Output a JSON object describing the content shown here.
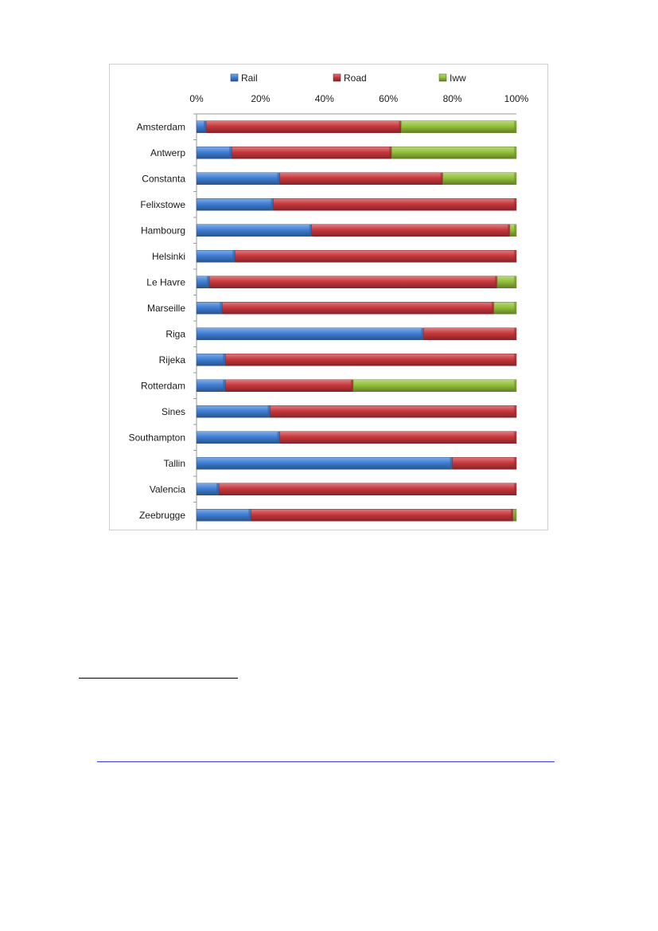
{
  "chart_data": {
    "type": "bar",
    "orientation": "horizontal",
    "stacked": true,
    "percent_stacked": true,
    "title": "",
    "xlabel": "",
    "ylabel": "",
    "xlim": [
      0,
      100
    ],
    "x_ticks": [
      "0%",
      "20%",
      "40%",
      "60%",
      "80%",
      "100%"
    ],
    "legend": "top",
    "grid": false,
    "categories": [
      "Amsterdam",
      "Antwerp",
      "Constanta",
      "Felixstowe",
      "Hambourg",
      "Helsinki",
      "Le Havre",
      "Marseille",
      "Riga",
      "Rijeka",
      "Rotterdam",
      "Sines",
      "Southampton",
      "Tallin",
      "Valencia",
      "Zeebrugge"
    ],
    "series": [
      {
        "name": "Rail",
        "color": "#3f7fd6",
        "values": [
          3,
          11,
          26,
          24,
          36,
          12,
          4,
          8,
          71,
          9,
          9,
          23,
          26,
          80,
          7,
          17
        ]
      },
      {
        "name": "Road",
        "color": "#c9383d",
        "values": [
          61,
          50,
          51,
          76,
          62,
          88,
          90,
          85,
          29,
          91,
          40,
          77,
          74,
          20,
          93,
          82
        ]
      },
      {
        "name": "Iww",
        "color": "#93c13a",
        "values": [
          36,
          39,
          23,
          0,
          2,
          0,
          6,
          7,
          0,
          0,
          51,
          0,
          0,
          0,
          0,
          1
        ]
      }
    ]
  },
  "page": {
    "footnote_rule": "",
    "link_rule": ""
  }
}
